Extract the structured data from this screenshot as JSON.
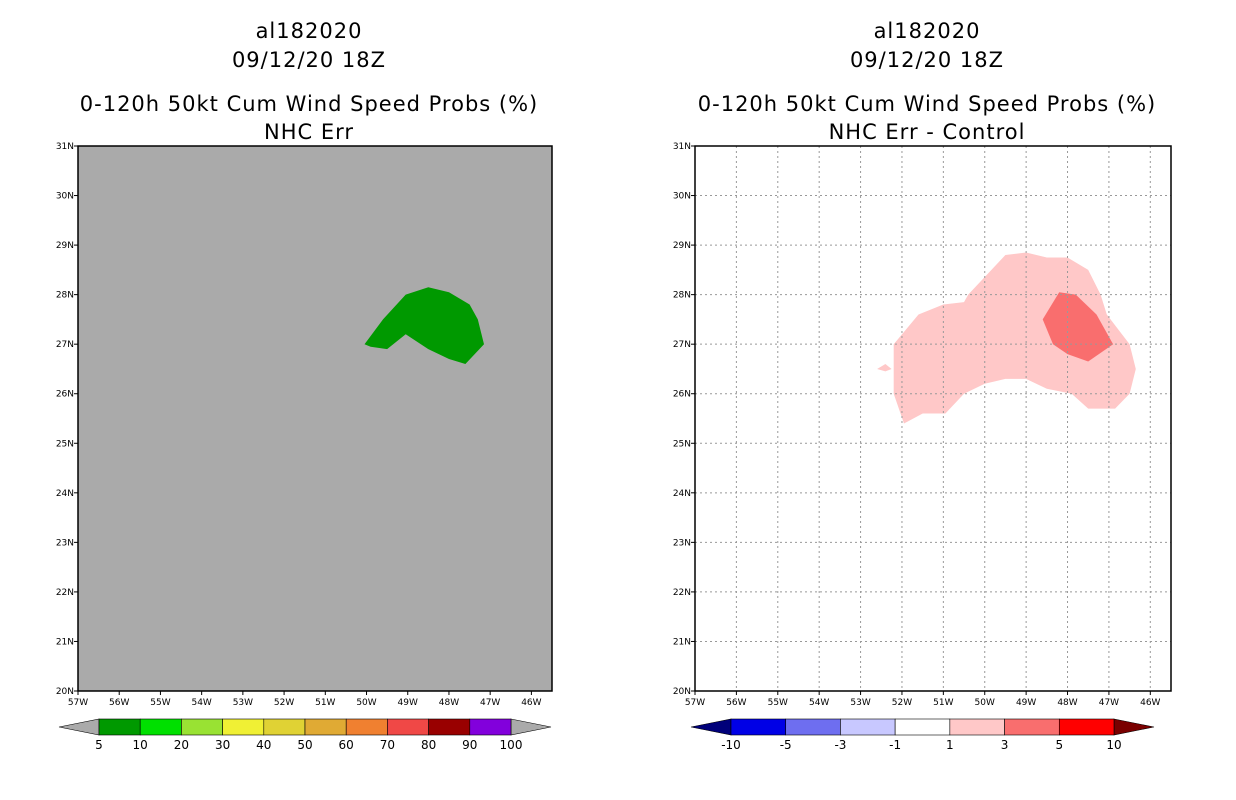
{
  "panels": [
    {
      "id": "left",
      "storm_id": "al182020",
      "datetime": "09/12/20 18Z",
      "title": "0-120h 50kt Cum Wind Speed Probs (%)",
      "subtitle": "NHC Err",
      "background": "#aaaaaa",
      "grid": false,
      "lon_range": [
        -57,
        -45.5
      ],
      "lat_range": [
        20,
        31
      ],
      "lon_ticks": [
        "57W",
        "56W",
        "55W",
        "54W",
        "53W",
        "52W",
        "51W",
        "50W",
        "49W",
        "48W",
        "47W",
        "46W"
      ],
      "lat_ticks": [
        "20N",
        "21N",
        "22N",
        "23N",
        "24N",
        "25N",
        "26N",
        "27N",
        "28N",
        "29N",
        "30N",
        "31N"
      ],
      "fields": [
        {
          "name": "5-10",
          "color": "#009900",
          "points": [
            [
              -50.05,
              27.0
            ],
            [
              -49.6,
              27.5
            ],
            [
              -49.05,
              28.0
            ],
            [
              -48.5,
              28.15
            ],
            [
              -48.0,
              28.05
            ],
            [
              -47.5,
              27.8
            ],
            [
              -47.3,
              27.5
            ],
            [
              -47.15,
              27.0
            ],
            [
              -47.6,
              26.6
            ],
            [
              -48.0,
              26.7
            ],
            [
              -48.5,
              26.9
            ],
            [
              -49.05,
              27.2
            ],
            [
              -49.5,
              26.9
            ],
            [
              -49.9,
              26.95
            ]
          ]
        }
      ],
      "colorbar": {
        "colors": [
          "#009900",
          "#00e000",
          "#99e233",
          "#f0f034",
          "#e0d234",
          "#e0aa34",
          "#f08030",
          "#f04846",
          "#990000",
          "#8200dc"
        ],
        "labels": [
          "5",
          "10",
          "20",
          "30",
          "40",
          "50",
          "60",
          "70",
          "80",
          "90",
          "100"
        ],
        "under_color": "#aaaaaa",
        "over_color": "#aaaaaa"
      }
    },
    {
      "id": "right",
      "storm_id": "al182020",
      "datetime": "09/12/20 18Z",
      "title": "0-120h 50kt Cum Wind Speed Probs (%)",
      "subtitle": "NHC Err - Control",
      "background": "#ffffff",
      "grid": true,
      "lon_range": [
        -57,
        -45.5
      ],
      "lat_range": [
        20,
        31
      ],
      "lon_ticks": [
        "57W",
        "56W",
        "55W",
        "54W",
        "53W",
        "52W",
        "51W",
        "50W",
        "49W",
        "48W",
        "47W",
        "46W"
      ],
      "lat_ticks": [
        "20N",
        "21N",
        "22N",
        "23N",
        "24N",
        "25N",
        "26N",
        "27N",
        "28N",
        "29N",
        "30N",
        "31N"
      ],
      "fields": [
        {
          "name": "1-3",
          "color": "#ffc8c8",
          "points": [
            [
              -52.2,
              27.0
            ],
            [
              -51.6,
              27.6
            ],
            [
              -51.0,
              27.8
            ],
            [
              -50.5,
              27.85
            ],
            [
              -50.4,
              28.0
            ],
            [
              -49.5,
              28.8
            ],
            [
              -49.0,
              28.85
            ],
            [
              -48.5,
              28.75
            ],
            [
              -48.0,
              28.75
            ],
            [
              -47.5,
              28.5
            ],
            [
              -47.2,
              28.0
            ],
            [
              -47.05,
              27.6
            ],
            [
              -46.5,
              27.0
            ],
            [
              -46.35,
              26.5
            ],
            [
              -46.5,
              26.0
            ],
            [
              -46.85,
              25.7
            ],
            [
              -47.5,
              25.7
            ],
            [
              -47.9,
              26.0
            ],
            [
              -48.5,
              26.1
            ],
            [
              -49.0,
              26.3
            ],
            [
              -49.5,
              26.3
            ],
            [
              -50.0,
              26.2
            ],
            [
              -50.5,
              26.0
            ],
            [
              -50.95,
              25.6
            ],
            [
              -51.5,
              25.6
            ],
            [
              -51.95,
              25.4
            ],
            [
              -52.2,
              26.0
            ]
          ]
        },
        {
          "name": "1-3-dot",
          "color": "#ffc8c8",
          "points": [
            [
              -52.6,
              26.5
            ],
            [
              -52.4,
              26.6
            ],
            [
              -52.25,
              26.5
            ],
            [
              -52.4,
              26.45
            ]
          ]
        },
        {
          "name": "3-5",
          "color": "#f96e6e",
          "points": [
            [
              -48.6,
              27.5
            ],
            [
              -48.2,
              28.05
            ],
            [
              -47.8,
              28.0
            ],
            [
              -47.3,
              27.6
            ],
            [
              -46.9,
              27.0
            ],
            [
              -47.5,
              26.65
            ],
            [
              -48.0,
              26.8
            ],
            [
              -48.35,
              27.0
            ]
          ]
        }
      ],
      "colorbar": {
        "colors": [
          "#0000e6",
          "#6e6ef0",
          "#c8c8ff",
          "#ffffff",
          "#ffc8c8",
          "#f96e6e",
          "#ff0000"
        ],
        "labels": [
          "-10",
          "-5",
          "-3",
          "-1",
          "1",
          "3",
          "5",
          "10"
        ],
        "under_color": "#00007a",
        "over_color": "#7a0000"
      }
    }
  ]
}
